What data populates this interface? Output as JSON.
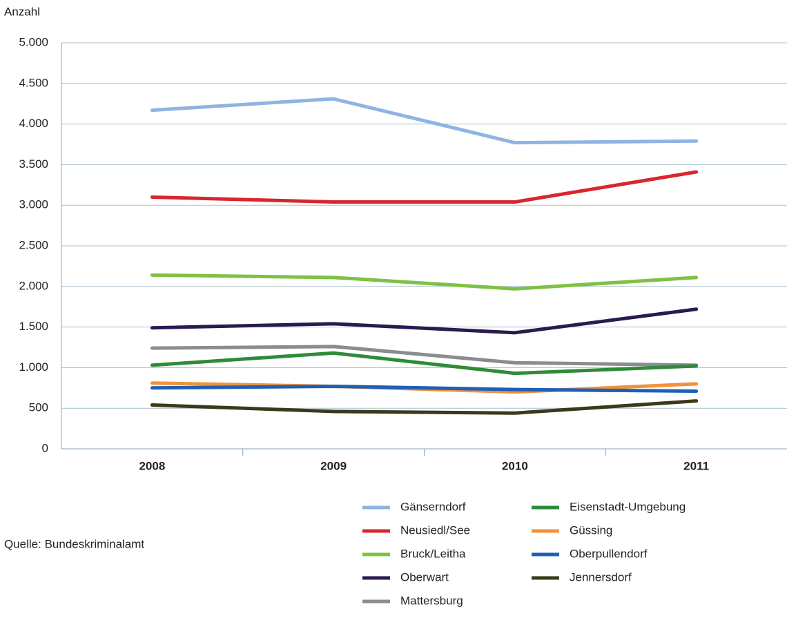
{
  "chart_data": {
    "type": "line",
    "y_label": "Anzahl",
    "source": "Quelle: Bundeskriminalamt",
    "categories": [
      "2008",
      "2009",
      "2010",
      "2011"
    ],
    "series": [
      {
        "name": "Gänserndorf",
        "color": "#8fb4e3",
        "values": [
          4170,
          4310,
          3770,
          3790
        ]
      },
      {
        "name": "Neusiedl/See",
        "color": "#d9262e",
        "values": [
          3100,
          3040,
          3040,
          3410
        ]
      },
      {
        "name": "Bruck/Leitha",
        "color": "#7dc242",
        "values": [
          2140,
          2110,
          1970,
          2110
        ]
      },
      {
        "name": "Oberwart",
        "color": "#2b1a4f",
        "values": [
          1490,
          1540,
          1430,
          1720
        ]
      },
      {
        "name": "Mattersburg",
        "color": "#8a8d8f",
        "values": [
          1240,
          1260,
          1060,
          1030
        ]
      },
      {
        "name": "Eisenstadt-Umgebung",
        "color": "#2e8b3a",
        "values": [
          1030,
          1180,
          930,
          1020
        ]
      },
      {
        "name": "Güssing",
        "color": "#f0923c",
        "values": [
          810,
          770,
          700,
          800
        ]
      },
      {
        "name": "Oberpullendorf",
        "color": "#1f5fb5",
        "values": [
          750,
          770,
          730,
          710
        ]
      },
      {
        "name": "Jennersdorf",
        "color": "#3a3a1a",
        "values": [
          540,
          460,
          440,
          590
        ]
      }
    ],
    "ylim": [
      0,
      5000
    ],
    "yticks": [
      0,
      500,
      {
        "value": 1000,
        "label": "1.000"
      },
      {
        "value": 1500,
        "label": "1.500"
      },
      {
        "value": 2000,
        "label": "2.000"
      },
      {
        "value": 2500,
        "label": "2.500"
      },
      {
        "value": 3000,
        "label": "3.000"
      },
      {
        "value": 3500,
        "label": "3.500"
      },
      {
        "value": 4000,
        "label": "4.000"
      },
      {
        "value": 4500,
        "label": "4.500"
      },
      {
        "value": 5000,
        "label": "5.000"
      }
    ],
    "grid": true
  }
}
